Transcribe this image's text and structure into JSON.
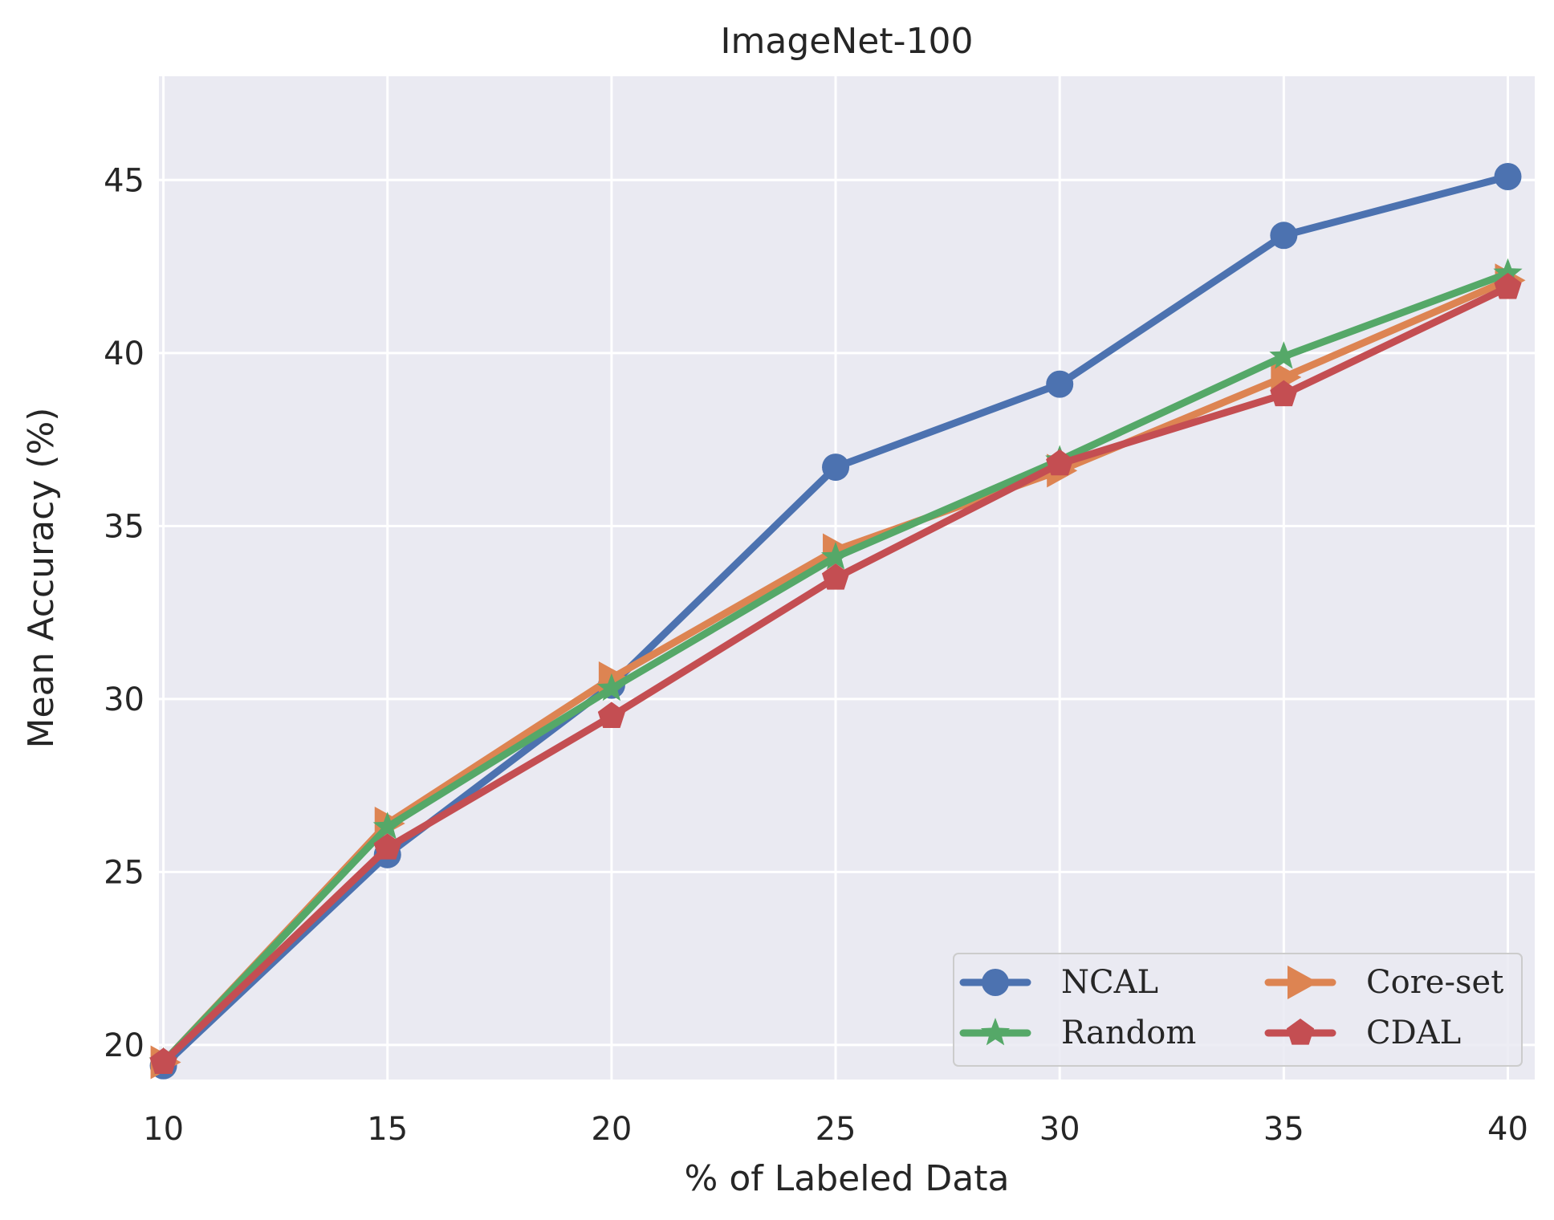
{
  "chart_data": {
    "type": "line",
    "title": "ImageNet-100",
    "xlabel": "% of Labeled Data",
    "ylabel": "Mean Accuracy (%)",
    "x": [
      10,
      15,
      20,
      25,
      30,
      35,
      40
    ],
    "xlim": [
      9.9,
      40.6
    ],
    "ylim": [
      19.0,
      48.0
    ],
    "xticks": [
      10,
      15,
      20,
      25,
      30,
      35,
      40
    ],
    "yticks": [
      20,
      25,
      30,
      35,
      40,
      45
    ],
    "grid": true,
    "legend_position": "lower-right",
    "legend_columns": 2,
    "series": [
      {
        "name": "NCAL",
        "marker": "circle",
        "color": "#4c72b0",
        "values": [
          19.4,
          25.5,
          30.4,
          36.7,
          39.1,
          43.4,
          45.1
        ]
      },
      {
        "name": "Core-set",
        "marker": "triangle-right",
        "color": "#dd8452",
        "values": [
          19.5,
          26.4,
          30.6,
          34.3,
          36.6,
          39.3,
          42.1
        ]
      },
      {
        "name": "Random",
        "marker": "star",
        "color": "#55a868",
        "values": [
          19.5,
          26.3,
          30.3,
          34.1,
          36.9,
          39.9,
          42.3
        ]
      },
      {
        "name": "CDAL",
        "marker": "pentagon",
        "color": "#c44e52",
        "values": [
          19.5,
          25.7,
          29.5,
          33.5,
          36.8,
          38.8,
          41.9
        ]
      }
    ]
  }
}
